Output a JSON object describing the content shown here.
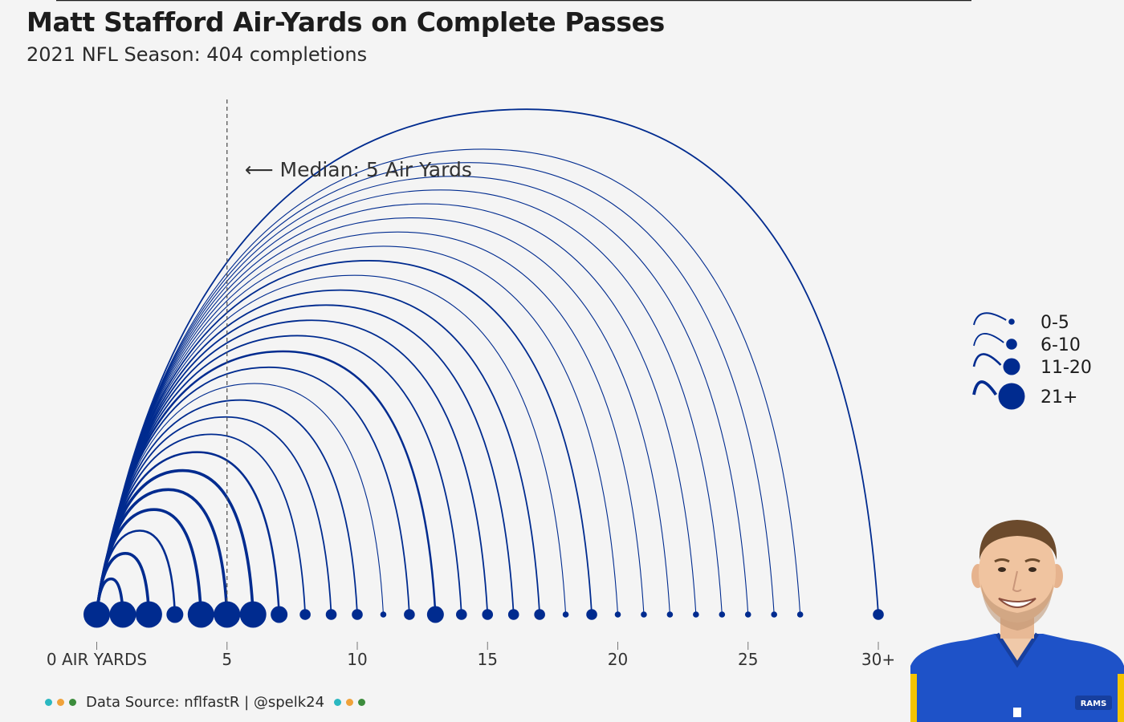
{
  "title": "Matt Stafford Air-Yards on Complete Passes",
  "subtitle": "2021 NFL Season: 404 completions",
  "colors": {
    "navy": "#002b8f",
    "background": "#f4f4f4",
    "dot_teal": "#2bb8c1",
    "dot_orange": "#f0a23a",
    "dot_green": "#3c8c3c",
    "helmet_blue": "#1e52c8",
    "shoulder_yellow": "#f5c400"
  },
  "chart_data": {
    "type": "scatter",
    "title": "Matt Stafford Air-Yards on Complete Passes",
    "subtitle": "2021 NFL Season: 404 completions",
    "xlabel": "",
    "ylabel": "",
    "x_ticks": [
      "0 AIR YARDS",
      "5",
      "10",
      "15",
      "20",
      "25",
      "30+"
    ],
    "x_tick_values": [
      0,
      5,
      10,
      15,
      20,
      25,
      30
    ],
    "xlim": [
      -1.7,
      33
    ],
    "grid": false,
    "legend_position": "right",
    "annotation": {
      "text": "⟵ Median: 5 Air Yards",
      "x": 5
    },
    "median_air_yards": 5,
    "size_bins": [
      "0-5",
      "6-10",
      "11-20",
      "21+"
    ],
    "points": [
      {
        "x": 0,
        "size_bin": "21+"
      },
      {
        "x": 1,
        "size_bin": "21+"
      },
      {
        "x": 2,
        "size_bin": "21+"
      },
      {
        "x": 3,
        "size_bin": "11-20"
      },
      {
        "x": 4,
        "size_bin": "21+"
      },
      {
        "x": 5,
        "size_bin": "21+"
      },
      {
        "x": 6,
        "size_bin": "21+"
      },
      {
        "x": 7,
        "size_bin": "11-20"
      },
      {
        "x": 8,
        "size_bin": "6-10"
      },
      {
        "x": 9,
        "size_bin": "6-10"
      },
      {
        "x": 10,
        "size_bin": "6-10"
      },
      {
        "x": 11,
        "size_bin": "0-5"
      },
      {
        "x": 12,
        "size_bin": "6-10"
      },
      {
        "x": 13,
        "size_bin": "11-20"
      },
      {
        "x": 14,
        "size_bin": "6-10"
      },
      {
        "x": 15,
        "size_bin": "6-10"
      },
      {
        "x": 16,
        "size_bin": "6-10"
      },
      {
        "x": 17,
        "size_bin": "6-10"
      },
      {
        "x": 18,
        "size_bin": "0-5"
      },
      {
        "x": 19,
        "size_bin": "6-10"
      },
      {
        "x": 20,
        "size_bin": "0-5"
      },
      {
        "x": 21,
        "size_bin": "0-5"
      },
      {
        "x": 22,
        "size_bin": "0-5"
      },
      {
        "x": 23,
        "size_bin": "0-5"
      },
      {
        "x": 24,
        "size_bin": "0-5"
      },
      {
        "x": 25,
        "size_bin": "0-5"
      },
      {
        "x": 26,
        "size_bin": "0-5"
      },
      {
        "x": 27,
        "size_bin": "0-5"
      },
      {
        "x": 30,
        "size_bin": "6-10"
      }
    ]
  },
  "footer": {
    "source_text": "Data Source: nflfastR | @spelk24"
  },
  "photo": {
    "jersey_logo": "RAMS"
  }
}
